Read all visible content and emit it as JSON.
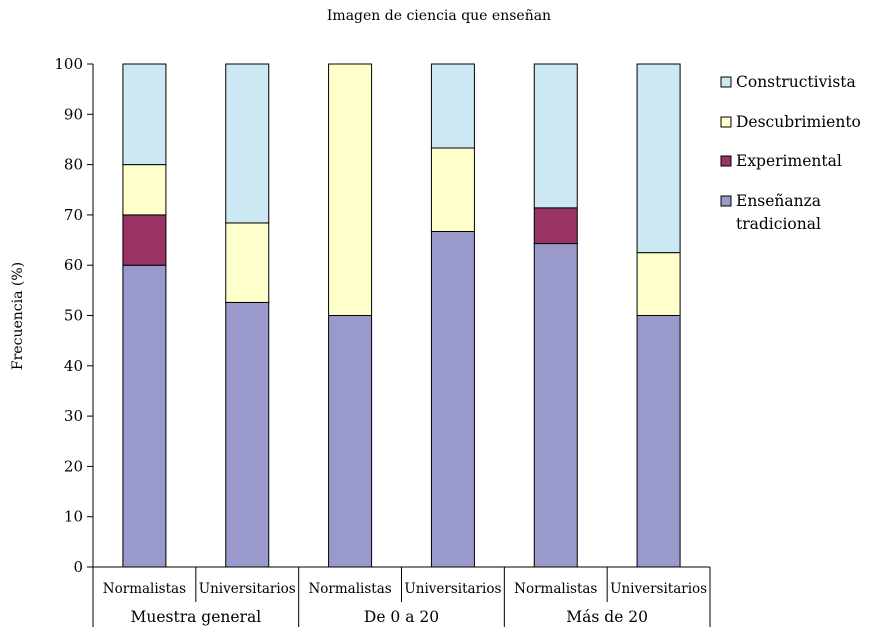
{
  "chart_data": {
    "type": "bar",
    "stacked": true,
    "title": "Imagen de ciencia que enseñan",
    "ylabel": "Frecuencia (%)",
    "xlabel": "",
    "ylim": [
      0,
      100
    ],
    "yticks": [
      0,
      10,
      20,
      30,
      40,
      50,
      60,
      70,
      80,
      90,
      100
    ],
    "grid": false,
    "legend_position": "right",
    "categories": [
      "Normalistas",
      "Universitarios",
      "Normalistas",
      "Universitarios",
      "Normalistas",
      "Universitarios"
    ],
    "groups": [
      {
        "label": "Muestra general",
        "categories": [
          0,
          1
        ]
      },
      {
        "label": "De 0 a 20",
        "categories": [
          2,
          3
        ]
      },
      {
        "label": "Más de 20",
        "categories": [
          4,
          5
        ]
      }
    ],
    "series": [
      {
        "name": "Enseñanza tradicional",
        "color": "#9999cc",
        "values": [
          60,
          52.6,
          50,
          66.7,
          64.3,
          50
        ]
      },
      {
        "name": "Experimental",
        "color": "#993366",
        "values": [
          10,
          0,
          0,
          0,
          7.1,
          0
        ]
      },
      {
        "name": "Descubrimiento",
        "color": "#ffffcc",
        "values": [
          10,
          15.8,
          50,
          16.6,
          0,
          12.5
        ]
      },
      {
        "name": "Constructivista",
        "color": "#cce8f2",
        "values": [
          20,
          31.6,
          0,
          16.7,
          28.6,
          37.5
        ]
      }
    ],
    "legend": [
      {
        "lines": [
          "Constructivista"
        ],
        "color": "#cce8f2"
      },
      {
        "lines": [
          "Descubrimiento"
        ],
        "color": "#ffffcc"
      },
      {
        "lines": [
          "Experimental"
        ],
        "color": "#993366"
      },
      {
        "lines": [
          "Enseñanza",
          "tradicional"
        ],
        "color": "#9999cc"
      }
    ]
  }
}
